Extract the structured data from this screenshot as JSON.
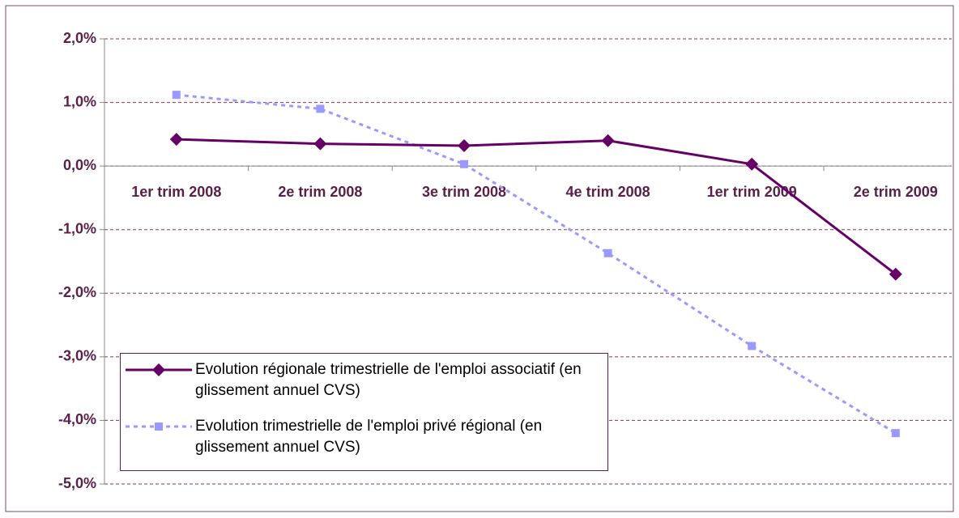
{
  "chart_data": {
    "type": "line",
    "categories": [
      "1er trim 2008",
      "2e trim 2008",
      "3e trim 2008",
      "4e trim 2008",
      "1er trim 2009",
      "2e trim 2009"
    ],
    "series": [
      {
        "name": "Evolution régionale trimestrielle de l'emploi associatif (en glissement annuel CVS)",
        "color": "#660066",
        "values": [
          0.42,
          0.35,
          0.32,
          0.4,
          0.03,
          -1.7
        ]
      },
      {
        "name": "Evolution trimestrielle de l'emploi privé régional (en glissement annuel CVS)",
        "color": "#9999ff",
        "values": [
          1.12,
          0.9,
          0.03,
          -1.37,
          -2.83,
          -4.2
        ]
      }
    ],
    "ylim": [
      -5,
      2
    ],
    "yticks": [
      {
        "value": 2,
        "label": "2,0%"
      },
      {
        "value": 1,
        "label": "1,0%"
      },
      {
        "value": 0,
        "label": "0,0%"
      },
      {
        "value": -1,
        "label": "-1,0%"
      },
      {
        "value": -2,
        "label": "-2,0%"
      },
      {
        "value": -3,
        "label": "-3,0%"
      },
      {
        "value": -4,
        "label": "-4,0%"
      },
      {
        "value": -5,
        "label": "-5,0%"
      }
    ],
    "grid": true
  }
}
